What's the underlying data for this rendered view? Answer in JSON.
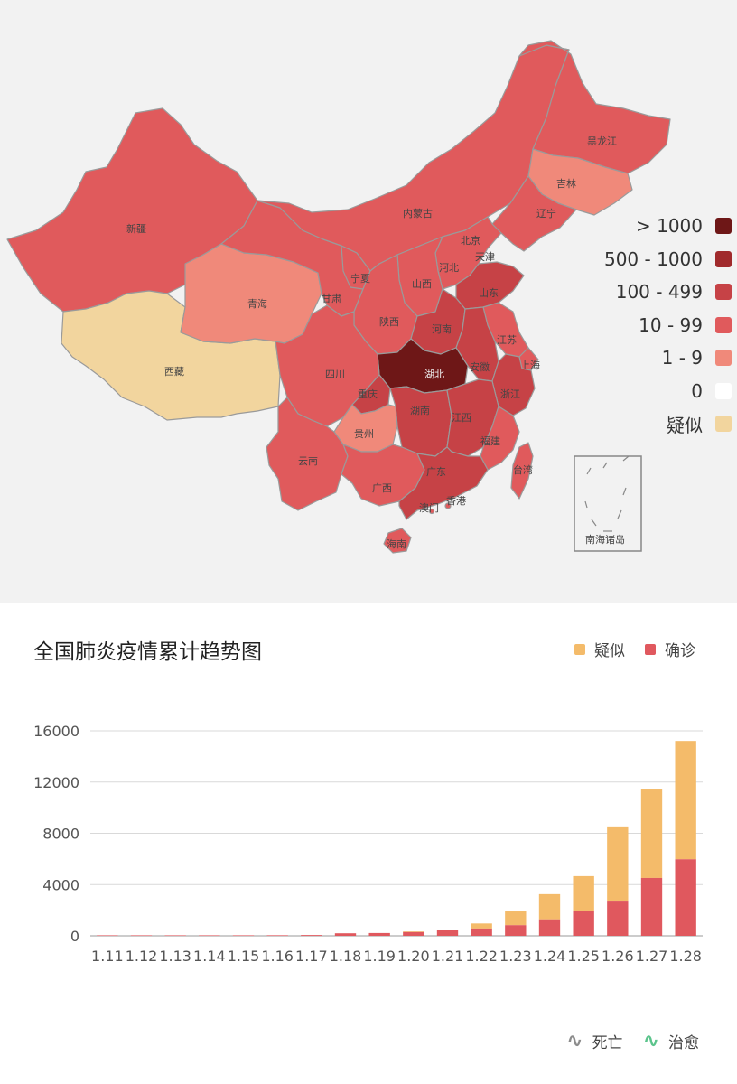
{
  "map": {
    "legend": [
      {
        "label": "> 1000",
        "color": "#6e1717"
      },
      {
        "label": "500 - 1000",
        "color": "#a02a2c"
      },
      {
        "label": "100 - 499",
        "color": "#c64246"
      },
      {
        "label": "10 - 99",
        "color": "#e05a5c"
      },
      {
        "label": "1 - 9",
        "color": "#f0897a"
      },
      {
        "label": "0",
        "color": "#ffffff"
      },
      {
        "label": "疑似",
        "color": "#f2d59e"
      }
    ],
    "provinces": {
      "xinjiang": "新疆",
      "xizang": "西藏",
      "qinghai": "青海",
      "gansu": "甘肃",
      "neimenggu": "内蒙古",
      "heilongjiang": "黑龙江",
      "jilin": "吉林",
      "liaoning": "辽宁",
      "beijing": "北京",
      "tianjin": "天津",
      "hebei": "河北",
      "shanxi": "山西",
      "ningxia": "宁夏",
      "shaanxi": "陕西",
      "shandong": "山东",
      "henan": "河南",
      "jiangsu": "江苏",
      "shanghai": "上海",
      "anhui": "安徽",
      "hubei": "湖北",
      "sichuan": "四川",
      "chongqing": "重庆",
      "zhejiang": "浙江",
      "hunan": "湖南",
      "jiangxi": "江西",
      "guizhou": "贵州",
      "yunnan": "云南",
      "fujian": "福建",
      "guangxi": "广西",
      "guangdong": "广东",
      "taiwan": "台湾",
      "hongkong": "香港",
      "macau": "澳门",
      "hainan": "海南",
      "south_sea": "南海诸岛"
    }
  },
  "chart": {
    "title": "全国肺炎疫情累计趋势图",
    "legend_top": [
      {
        "label": "疑似",
        "color": "#f4bb6a"
      },
      {
        "label": "确诊",
        "color": "#e0585e"
      }
    ],
    "legend_bottom": [
      {
        "label": "死亡",
        "color": "#8c8c8c"
      },
      {
        "label": "治愈",
        "color": "#5bc48c"
      }
    ]
  },
  "chart_data": {
    "type": "bar",
    "stacked": true,
    "categories": [
      "1.11",
      "1.12",
      "1.13",
      "1.14",
      "1.15",
      "1.16",
      "1.17",
      "1.18",
      "1.19",
      "1.20",
      "1.21",
      "1.22",
      "1.23",
      "1.24",
      "1.25",
      "1.26",
      "1.27",
      "1.28"
    ],
    "series": [
      {
        "name": "确诊",
        "color": "#e0585e",
        "values": [
          41,
          41,
          41,
          41,
          41,
          45,
          62,
          198,
          218,
          291,
          440,
          571,
          830,
          1287,
          1975,
          2744,
          4515,
          5974
        ]
      },
      {
        "name": "疑似",
        "color": "#f4bb6a",
        "values": [
          0,
          0,
          0,
          0,
          0,
          0,
          0,
          0,
          0,
          54,
          37,
          393,
          1072,
          1965,
          2684,
          5794,
          6973,
          9239
        ]
      }
    ],
    "ylim": [
      0,
      16000
    ],
    "yticks": [
      0,
      4000,
      8000,
      12000,
      16000
    ],
    "grid": true
  }
}
